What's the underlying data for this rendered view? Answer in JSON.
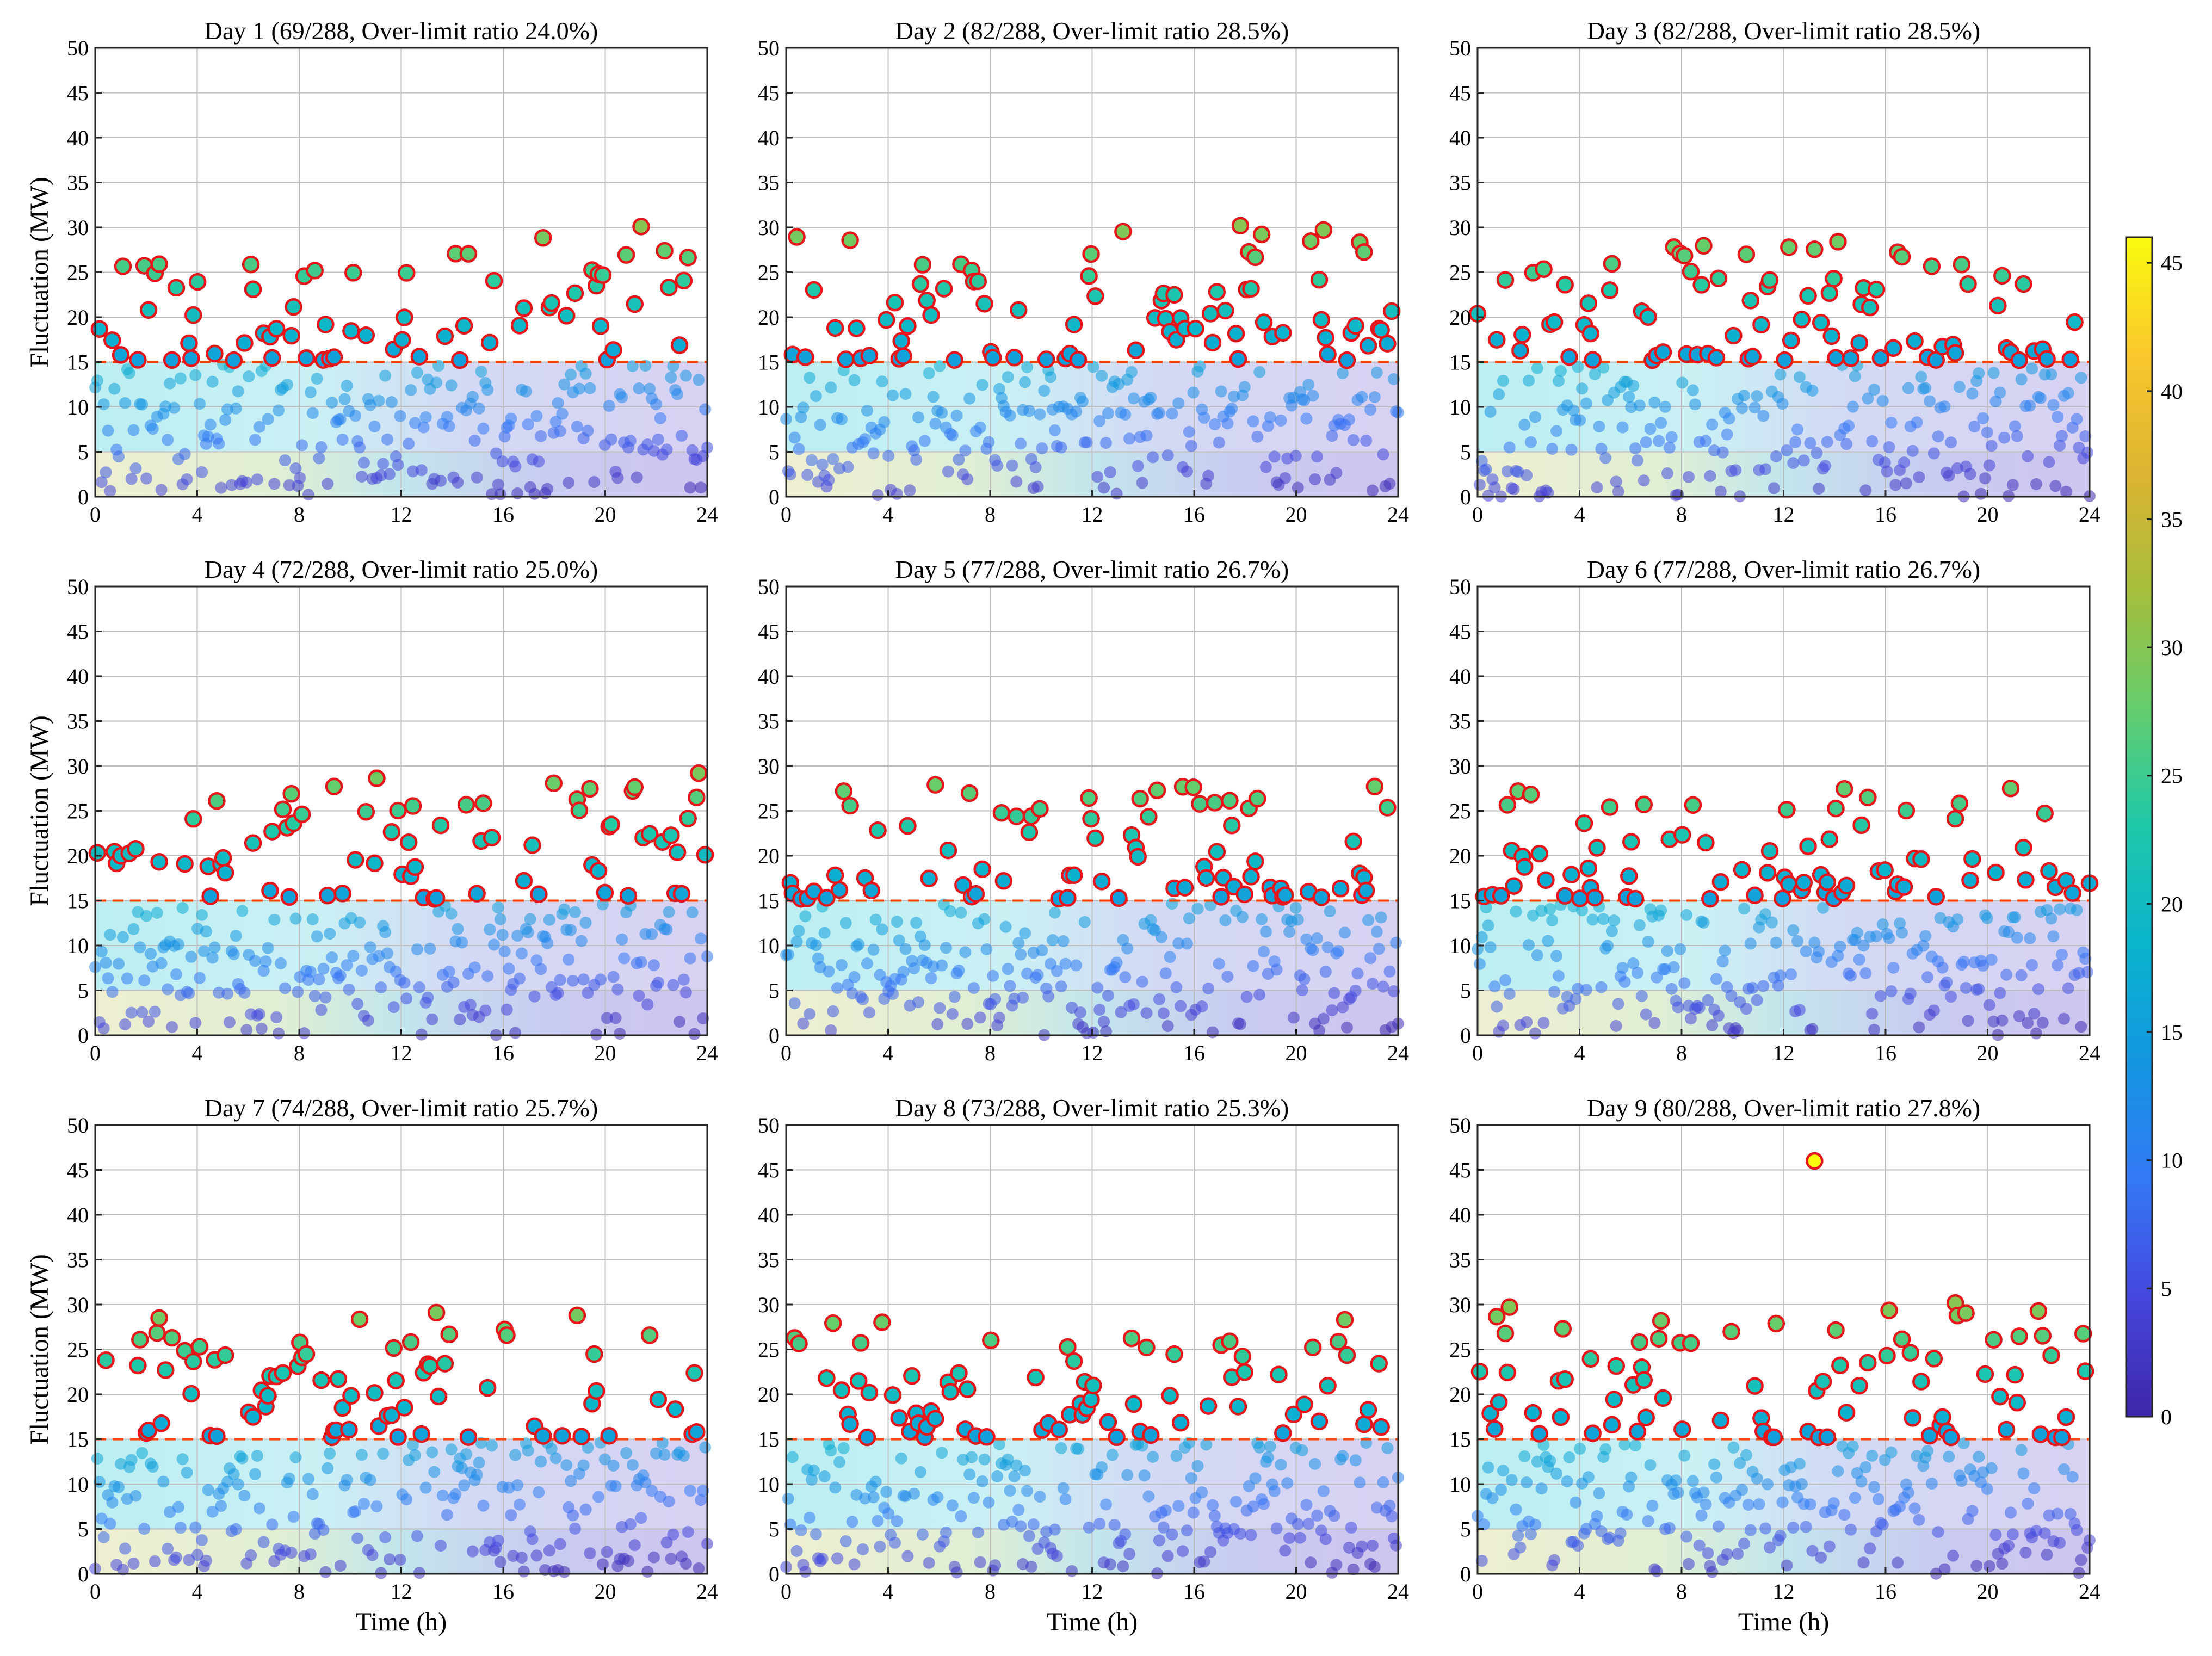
{
  "chart_data": {
    "type": "scatter",
    "layout": "3x3 grid",
    "shared": {
      "xlabel": "Time (h)",
      "ylabel": "Fluctuation (MW)",
      "xlim": [
        0,
        24
      ],
      "ylim": [
        0,
        50
      ],
      "xticks": [
        0,
        4,
        8,
        12,
        16,
        20,
        24
      ],
      "yticks": [
        0,
        5,
        10,
        15,
        20,
        25,
        30,
        35,
        40,
        45,
        50
      ],
      "limit_line": 15,
      "points_per_day": 288,
      "grid": true
    },
    "colorbar": {
      "min": 0,
      "max": 46,
      "ticks": [
        0,
        5,
        10,
        15,
        20,
        25,
        30,
        35,
        40,
        45
      ],
      "colormap": "parula"
    },
    "days": [
      {
        "title": "Day 1 (69/288, Over-limit ratio 24.0%)",
        "over": 69,
        "ratio": 24.0,
        "max": 30.1
      },
      {
        "title": "Day 2 (82/288, Over-limit ratio 28.5%)",
        "over": 82,
        "ratio": 28.5,
        "max": 30.2
      },
      {
        "title": "Day 3 (82/288, Over-limit ratio 28.5%)",
        "over": 82,
        "ratio": 28.5,
        "max": 28.4
      },
      {
        "title": "Day 4 (72/288, Over-limit ratio 25.0%)",
        "over": 72,
        "ratio": 25.0,
        "max": 29.2
      },
      {
        "title": "Day 5 (77/288, Over-limit ratio 26.7%)",
        "over": 77,
        "ratio": 26.7,
        "max": 27.9
      },
      {
        "title": "Day 6 (77/288, Over-limit ratio 26.7%)",
        "over": 77,
        "ratio": 26.7,
        "max": 27.5
      },
      {
        "title": "Day 7 (74/288, Over-limit ratio 25.7%)",
        "over": 74,
        "ratio": 25.7,
        "max": 29.1
      },
      {
        "title": "Day 8 (73/288, Over-limit ratio 25.3%)",
        "over": 73,
        "ratio": 25.3,
        "max": 28.3
      },
      {
        "title": "Day 9 (80/288, Over-limit ratio 27.8%)",
        "over": 80,
        "ratio": 27.8,
        "max": 46.0
      }
    ]
  }
}
